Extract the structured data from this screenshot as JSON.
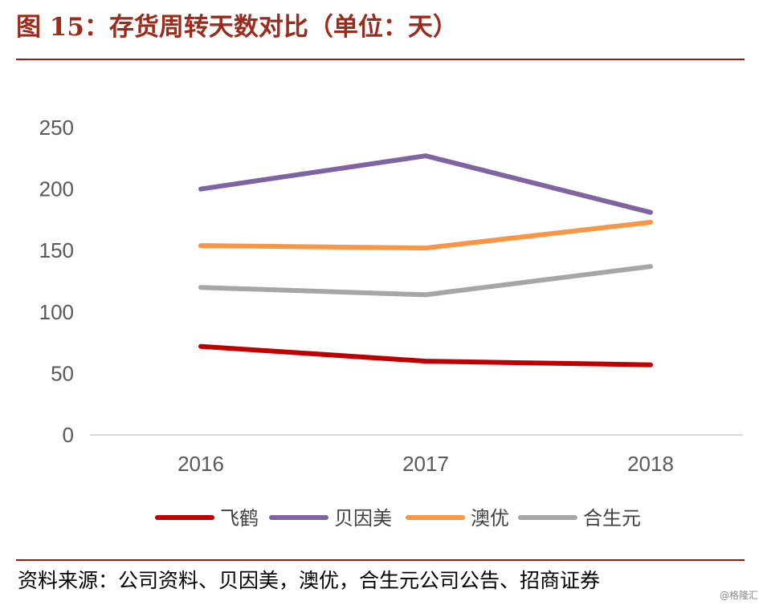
{
  "header": {
    "title": "图 15：存货周转天数对比（单位：天）"
  },
  "footer": {
    "source": "资料来源：公司资料、贝因美，澳优，合生元公司公告、招商证券",
    "watermark": "@格隆汇"
  },
  "chart_data": {
    "type": "line",
    "title": "存货周转天数对比（单位：天）",
    "xlabel": "",
    "ylabel": "",
    "x": [
      "2016",
      "2017",
      "2018"
    ],
    "ylim": [
      0,
      250
    ],
    "yticks": [
      0,
      50,
      100,
      150,
      200,
      250
    ],
    "grid": false,
    "legend_position": "bottom",
    "series": [
      {
        "name": "飞鹤",
        "values": [
          72,
          60,
          57
        ],
        "color": "#c00000"
      },
      {
        "name": "贝因美",
        "values": [
          200,
          227,
          181
        ],
        "color": "#8064a2"
      },
      {
        "name": "澳优",
        "values": [
          154,
          152,
          173
        ],
        "color": "#f79646"
      },
      {
        "name": "合生元",
        "values": [
          120,
          114,
          137
        ],
        "color": "#a6a6a6"
      }
    ]
  }
}
